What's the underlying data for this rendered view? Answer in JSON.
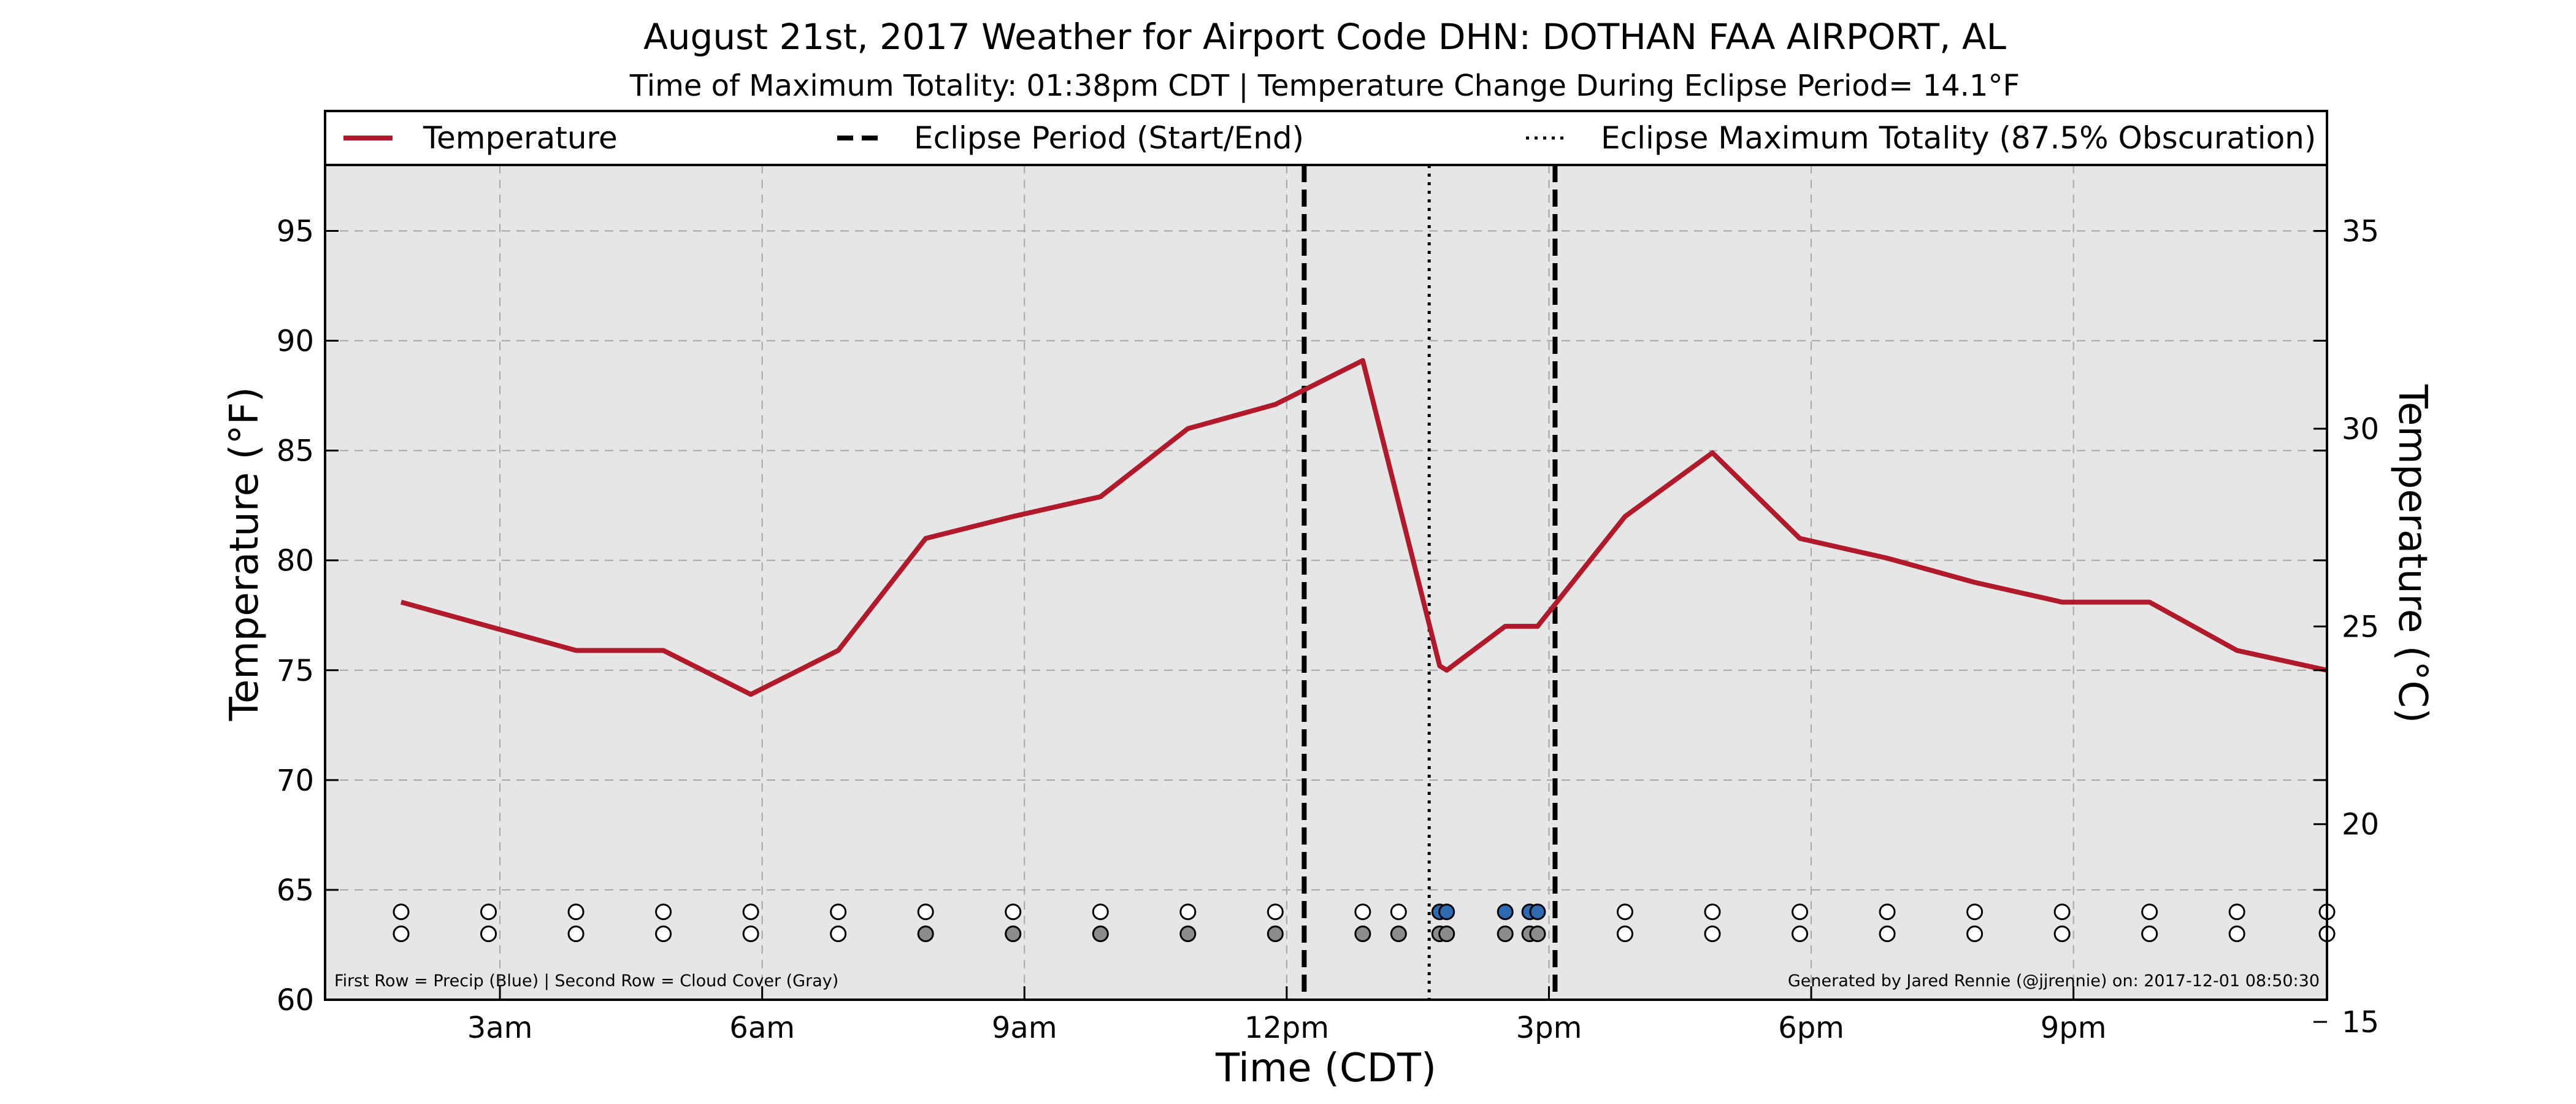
{
  "chart_data": {
    "type": "line",
    "title": "August 21st, 2017 Weather for Airport Code DHN: DOTHAN FAA AIRPORT, AL",
    "subtitle": "Time of Maximum Totality: 01:38pm CDT | Temperature Change During Eclipse Period= 14.1°F",
    "xlabel": "Time (CDT)",
    "ylabel": "Temperature (°F)",
    "ylabel_right": "Temperature (°C)",
    "xlim": [
      1.0,
      23.9
    ],
    "ylim": [
      60,
      98
    ],
    "ylim_right": [
      15.56,
      36.67
    ],
    "x_ticks": [
      {
        "value": 3,
        "label": "3am"
      },
      {
        "value": 6,
        "label": "6am"
      },
      {
        "value": 9,
        "label": "9am"
      },
      {
        "value": 12,
        "label": "12pm"
      },
      {
        "value": 15,
        "label": "3pm"
      },
      {
        "value": 18,
        "label": "6pm"
      },
      {
        "value": 21,
        "label": "9pm"
      }
    ],
    "y_ticks": [
      60,
      65,
      70,
      75,
      80,
      85,
      90,
      95
    ],
    "y_ticks_right": [
      15,
      20,
      25,
      30,
      35
    ],
    "grid": true,
    "legend_position": "top",
    "legend": [
      {
        "label": "Temperature",
        "style": "solid",
        "color": "#b11a2b"
      },
      {
        "label": "Eclipse Period (Start/End)",
        "style": "dashed",
        "color": "#000000"
      },
      {
        "label": "Eclipse Maximum Totality (87.5% Obscuration)",
        "style": "dotted",
        "color": "#000000"
      }
    ],
    "series": [
      {
        "name": "Temperature",
        "color": "#b11a2b",
        "points": [
          [
            1.87,
            78.1
          ],
          [
            2.87,
            77.0
          ],
          [
            3.87,
            75.9
          ],
          [
            4.87,
            75.9
          ],
          [
            5.87,
            73.9
          ],
          [
            6.87,
            75.9
          ],
          [
            7.87,
            81.0
          ],
          [
            8.87,
            82.0
          ],
          [
            9.87,
            82.9
          ],
          [
            10.87,
            86.0
          ],
          [
            11.87,
            87.1
          ],
          [
            12.87,
            89.1
          ],
          [
            13.75,
            75.2
          ],
          [
            13.83,
            75.0
          ],
          [
            14.5,
            77.0
          ],
          [
            14.87,
            77.0
          ],
          [
            15.87,
            82.0
          ],
          [
            16.87,
            84.9
          ],
          [
            17.87,
            81.0
          ],
          [
            18.87,
            80.1
          ],
          [
            19.87,
            79.0
          ],
          [
            20.87,
            78.1
          ],
          [
            21.87,
            78.1
          ],
          [
            22.87,
            75.9
          ],
          [
            23.9,
            75.0
          ]
        ]
      }
    ],
    "eclipse_start": 12.2,
    "eclipse_end": 15.07,
    "eclipse_max": 13.63,
    "observation_note": "First Row = Precip (Blue) | Second Row = Cloud Cover (Gray)",
    "credit": "Generated by Jared Rennie (@jjrennie) on: 2017-12-01 08:50:30",
    "observation_rows": {
      "precip_y": 64,
      "cloud_y": 63,
      "observations": [
        {
          "x": 1.87,
          "precip": "none",
          "cloud": "clear"
        },
        {
          "x": 2.87,
          "precip": "none",
          "cloud": "clear"
        },
        {
          "x": 3.87,
          "precip": "none",
          "cloud": "clear"
        },
        {
          "x": 4.87,
          "precip": "none",
          "cloud": "clear"
        },
        {
          "x": 5.87,
          "precip": "none",
          "cloud": "clear"
        },
        {
          "x": 6.87,
          "precip": "none",
          "cloud": "clear"
        },
        {
          "x": 7.87,
          "precip": "none",
          "cloud": "cloudy"
        },
        {
          "x": 8.87,
          "precip": "none",
          "cloud": "cloudy"
        },
        {
          "x": 9.87,
          "precip": "none",
          "cloud": "cloudy"
        },
        {
          "x": 10.87,
          "precip": "none",
          "cloud": "cloudy"
        },
        {
          "x": 11.87,
          "precip": "none",
          "cloud": "cloudy"
        },
        {
          "x": 12.87,
          "precip": "none",
          "cloud": "cloudy"
        },
        {
          "x": 13.28,
          "precip": "none",
          "cloud": "cloudy"
        },
        {
          "x": 13.75,
          "precip": "rain",
          "cloud": "cloudy"
        },
        {
          "x": 13.83,
          "precip": "rain",
          "cloud": "cloudy"
        },
        {
          "x": 14.5,
          "precip": "rain",
          "cloud": "cloudy"
        },
        {
          "x": 14.78,
          "precip": "rain",
          "cloud": "cloudy"
        },
        {
          "x": 14.87,
          "precip": "rain",
          "cloud": "cloudy"
        },
        {
          "x": 15.87,
          "precip": "none",
          "cloud": "clear"
        },
        {
          "x": 16.87,
          "precip": "none",
          "cloud": "clear"
        },
        {
          "x": 17.87,
          "precip": "none",
          "cloud": "clear"
        },
        {
          "x": 18.87,
          "precip": "none",
          "cloud": "clear"
        },
        {
          "x": 19.87,
          "precip": "none",
          "cloud": "clear"
        },
        {
          "x": 20.87,
          "precip": "none",
          "cloud": "clear"
        },
        {
          "x": 21.87,
          "precip": "none",
          "cloud": "clear"
        },
        {
          "x": 22.87,
          "precip": "none",
          "cloud": "clear"
        },
        {
          "x": 23.9,
          "precip": "none",
          "cloud": "clear"
        }
      ]
    },
    "colors": {
      "plot_background": "#e6e6e6",
      "grid": "#a6a6a6",
      "precip": "#2e6ab0",
      "cloud_cover": "#8c8c8c",
      "clear": "#ffffff"
    }
  }
}
